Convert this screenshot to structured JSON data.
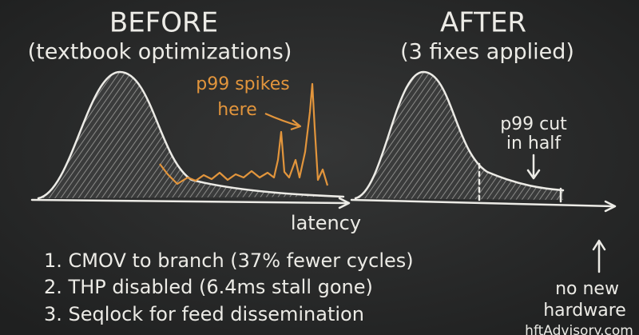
{
  "before": {
    "title": "BEFORE",
    "subtitle": "(textbook optimizations)",
    "annotation": [
      "p99 spikes",
      "here"
    ]
  },
  "axis_label": "latency",
  "after": {
    "title": "AFTER",
    "subtitle": "(3 fixes applied)",
    "annotation": [
      "p99 cut",
      "in half"
    ]
  },
  "fixes": [
    "1. CMOV to branch (37% fewer cycles)",
    "2. THP disabled (6.4ms stall gone)",
    "3. Seqlock for feed dissemination"
  ],
  "note": [
    "no new",
    "hardware"
  ],
  "watermark": "hftAdvisory.com"
}
